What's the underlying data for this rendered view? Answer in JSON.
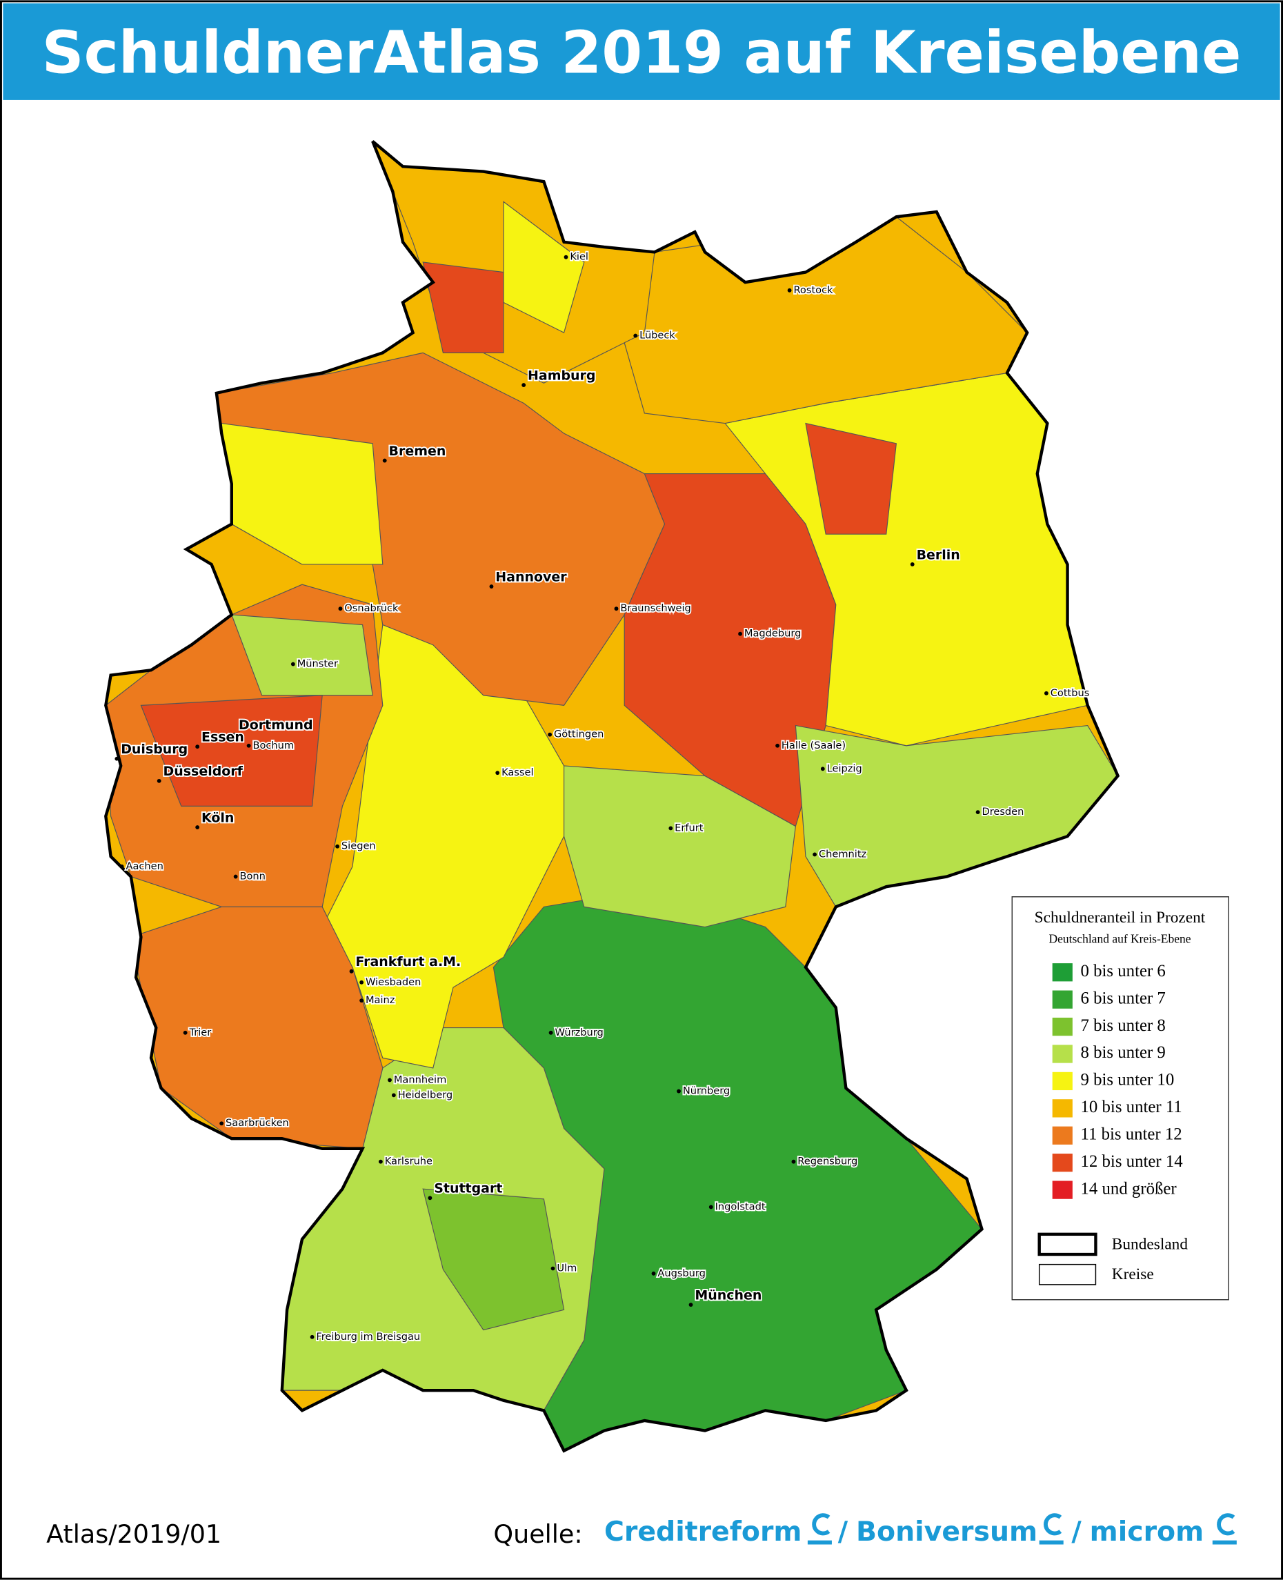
{
  "title": "SchuldnerAtlas 2019 auf Kreisebene",
  "cities": [
    {
      "name": "Kiel",
      "major": false
    },
    {
      "name": "Rostock",
      "major": false
    },
    {
      "name": "Lübeck",
      "major": false
    },
    {
      "name": "Hamburg",
      "major": true
    },
    {
      "name": "Bremen",
      "major": true
    },
    {
      "name": "Berlin",
      "major": true
    },
    {
      "name": "Hannover",
      "major": true
    },
    {
      "name": "Osnabrück",
      "major": false
    },
    {
      "name": "Braunschweig",
      "major": false
    },
    {
      "name": "Magdeburg",
      "major": false
    },
    {
      "name": "Münster",
      "major": false
    },
    {
      "name": "Cottbus",
      "major": false
    },
    {
      "name": "Dortmund",
      "major": true
    },
    {
      "name": "Essen",
      "major": true
    },
    {
      "name": "Bochum",
      "major": false
    },
    {
      "name": "Duisburg",
      "major": true
    },
    {
      "name": "Göttingen",
      "major": false
    },
    {
      "name": "Halle (Saale)",
      "major": false
    },
    {
      "name": "Düsseldorf",
      "major": true
    },
    {
      "name": "Kassel",
      "major": false
    },
    {
      "name": "Leipzig",
      "major": false
    },
    {
      "name": "Dresden",
      "major": false
    },
    {
      "name": "Köln",
      "major": true
    },
    {
      "name": "Erfurt",
      "major": false
    },
    {
      "name": "Siegen",
      "major": false
    },
    {
      "name": "Chemnitz",
      "major": false
    },
    {
      "name": "Aachen",
      "major": false
    },
    {
      "name": "Bonn",
      "major": false
    },
    {
      "name": "Frankfurt a.M.",
      "major": true
    },
    {
      "name": "Wiesbaden",
      "major": false
    },
    {
      "name": "Mainz",
      "major": false
    },
    {
      "name": "Würzburg",
      "major": false
    },
    {
      "name": "Trier",
      "major": false
    },
    {
      "name": "Mannheim",
      "major": false
    },
    {
      "name": "Heidelberg",
      "major": false
    },
    {
      "name": "Nürnberg",
      "major": false
    },
    {
      "name": "Saarbrücken",
      "major": false
    },
    {
      "name": "Regensburg",
      "major": false
    },
    {
      "name": "Karlsruhe",
      "major": false
    },
    {
      "name": "Stuttgart",
      "major": true
    },
    {
      "name": "Ingolstadt",
      "major": false
    },
    {
      "name": "Ulm",
      "major": false
    },
    {
      "name": "Augsburg",
      "major": false
    },
    {
      "name": "München",
      "major": true
    },
    {
      "name": "Freiburg im Breisgau",
      "major": false
    }
  ],
  "legend": {
    "title": "Schuldneranteil in Prozent",
    "subtitle": "Deutschland auf Kreis-Ebene",
    "items": [
      {
        "label": "0 bis unter 6",
        "color": "#1e9e36"
      },
      {
        "label": "6 bis unter 7",
        "color": "#33a532"
      },
      {
        "label": "7 bis unter 8",
        "color": "#7dc22e"
      },
      {
        "label": "8 bis unter 9",
        "color": "#b6e04a"
      },
      {
        "label": "9 bis unter 10",
        "color": "#f6f312"
      },
      {
        "label": "10 bis unter 11",
        "color": "#f5b800"
      },
      {
        "label": "11 bis unter 12",
        "color": "#ec7a1e"
      },
      {
        "label": "12 bis unter 14",
        "color": "#e4491c"
      },
      {
        "label": "14 und größer",
        "color": "#e31e24"
      }
    ],
    "borders": [
      {
        "label": "Bundesland"
      },
      {
        "label": "Kreise"
      }
    ]
  },
  "footer": {
    "code": "Atlas/2019/01",
    "source": "Quelle:",
    "separator": "/",
    "brands": [
      "Creditreform",
      "Boniversum",
      "microm"
    ]
  }
}
